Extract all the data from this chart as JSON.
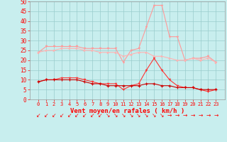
{
  "x": [
    0,
    1,
    2,
    3,
    4,
    5,
    6,
    7,
    8,
    9,
    10,
    11,
    12,
    13,
    14,
    15,
    16,
    17,
    18,
    19,
    20,
    21,
    22,
    23
  ],
  "line1": [
    24,
    27,
    27,
    27,
    27,
    27,
    26,
    26,
    26,
    26,
    26,
    19,
    25,
    26,
    37,
    48,
    48,
    32,
    32,
    20,
    21,
    21,
    22,
    19
  ],
  "line2": [
    24,
    25,
    25,
    26,
    26,
    26,
    25,
    25,
    24,
    24,
    24,
    22,
    23,
    24,
    24,
    22,
    22,
    21,
    20,
    20,
    21,
    20,
    21,
    19
  ],
  "line3": [
    9,
    10,
    10,
    11,
    11,
    11,
    10,
    9,
    8,
    8,
    8,
    5,
    7,
    8,
    15,
    21,
    15,
    10,
    7,
    6,
    6,
    5,
    4,
    5
  ],
  "line4": [
    9,
    10,
    10,
    10,
    10,
    10,
    9,
    8,
    8,
    7,
    7,
    7,
    7,
    7,
    8,
    8,
    7,
    7,
    6,
    6,
    6,
    5,
    5,
    5
  ],
  "color1": "#FF9999",
  "color2": "#FFB3B3",
  "color3": "#FF3333",
  "color4": "#CC0000",
  "bg_color": "#C8EEEE",
  "grid_color": "#99CCCC",
  "xlabel": "Vent moyen/en rafales ( km/h )",
  "ylim": [
    0,
    50
  ],
  "yticks": [
    0,
    5,
    10,
    15,
    20,
    25,
    30,
    35,
    40,
    45,
    50
  ],
  "wind_symbols": [
    "↙",
    "↙",
    "↙",
    "↙",
    "↙",
    "↙",
    "↙",
    "↙",
    "↙",
    "↘",
    "↘",
    "↘",
    "↘",
    "↘",
    "↘",
    "↘",
    "↘",
    "→",
    "→",
    "→",
    "→",
    "→",
    "→",
    "→"
  ]
}
